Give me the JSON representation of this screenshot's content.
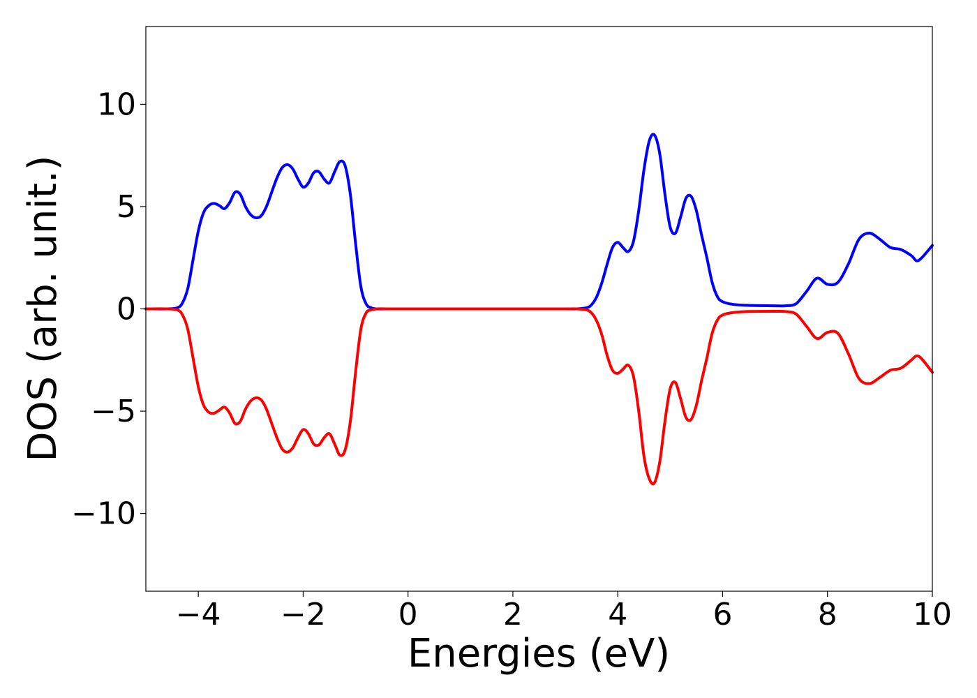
{
  "chart_data": {
    "type": "line",
    "title": "",
    "xlabel": "Energies (eV)",
    "ylabel": "DOS (arb. unit.)",
    "xlim": [
      -5,
      10
    ],
    "ylim": [
      -13.8,
      13.8
    ],
    "grid": false,
    "legend": "none",
    "x_ticks": [
      -4,
      -2,
      0,
      2,
      4,
      6,
      8,
      10
    ],
    "x_tick_labels": [
      "−4",
      "−2",
      "0",
      "2",
      "4",
      "6",
      "8",
      "10"
    ],
    "y_ticks": [
      -10,
      -5,
      0,
      5,
      10
    ],
    "y_tick_labels": [
      "−10",
      "−5",
      "0",
      "5",
      "10"
    ],
    "series": [
      {
        "color": "#0000ff",
        "x": [
          -5.0,
          -4.6,
          -4.4,
          -4.3,
          -4.2,
          -4.1,
          -4.0,
          -3.9,
          -3.8,
          -3.7,
          -3.6,
          -3.5,
          -3.4,
          -3.3,
          -3.2,
          -3.1,
          -3.0,
          -2.9,
          -2.8,
          -2.7,
          -2.6,
          -2.5,
          -2.4,
          -2.3,
          -2.2,
          -2.1,
          -2.0,
          -1.9,
          -1.8,
          -1.7,
          -1.6,
          -1.5,
          -1.4,
          -1.3,
          -1.2,
          -1.1,
          -1.0,
          -0.9,
          -0.8,
          -0.7,
          -0.6,
          -0.4,
          0.0,
          1.0,
          2.0,
          3.0,
          3.2,
          3.4,
          3.5,
          3.6,
          3.7,
          3.8,
          3.9,
          4.0,
          4.1,
          4.2,
          4.3,
          4.4,
          4.5,
          4.6,
          4.7,
          4.8,
          4.9,
          5.0,
          5.1,
          5.2,
          5.3,
          5.4,
          5.5,
          5.6,
          5.7,
          5.8,
          5.9,
          6.0,
          6.2,
          6.5,
          7.0,
          7.2,
          7.4,
          7.6,
          7.8,
          8.0,
          8.2,
          8.4,
          8.6,
          8.8,
          9.0,
          9.2,
          9.4,
          9.6,
          9.7,
          9.8,
          10.0
        ],
        "y": [
          0.0,
          0.0,
          0.05,
          0.3,
          1.0,
          2.4,
          3.8,
          4.7,
          5.05,
          5.15,
          5.05,
          4.9,
          5.2,
          5.7,
          5.6,
          5.0,
          4.6,
          4.45,
          4.55,
          5.0,
          5.7,
          6.4,
          6.9,
          7.05,
          6.85,
          6.35,
          5.95,
          6.15,
          6.65,
          6.7,
          6.35,
          6.15,
          6.7,
          7.2,
          7.0,
          5.6,
          3.2,
          1.1,
          0.25,
          0.05,
          0.0,
          0.0,
          0.0,
          0.0,
          0.0,
          0.0,
          0.0,
          0.05,
          0.2,
          0.6,
          1.3,
          2.2,
          3.0,
          3.25,
          3.0,
          2.8,
          3.3,
          4.8,
          6.8,
          8.2,
          8.5,
          7.6,
          5.6,
          4.0,
          3.7,
          4.5,
          5.4,
          5.5,
          4.8,
          3.6,
          2.5,
          1.3,
          0.6,
          0.35,
          0.22,
          0.17,
          0.15,
          0.15,
          0.25,
          0.85,
          1.5,
          1.2,
          1.3,
          2.2,
          3.4,
          3.7,
          3.4,
          3.0,
          2.9,
          2.6,
          2.35,
          2.5,
          3.1
        ]
      },
      {
        "color": "#ff0000",
        "x": [
          -5.0,
          -4.6,
          -4.4,
          -4.3,
          -4.2,
          -4.1,
          -4.0,
          -3.9,
          -3.8,
          -3.7,
          -3.6,
          -3.5,
          -3.4,
          -3.3,
          -3.2,
          -3.1,
          -3.0,
          -2.9,
          -2.8,
          -2.7,
          -2.6,
          -2.5,
          -2.4,
          -2.3,
          -2.2,
          -2.1,
          -2.0,
          -1.9,
          -1.8,
          -1.7,
          -1.6,
          -1.5,
          -1.4,
          -1.3,
          -1.2,
          -1.1,
          -1.0,
          -0.9,
          -0.8,
          -0.7,
          -0.6,
          -0.4,
          0.0,
          1.0,
          2.0,
          3.0,
          3.2,
          3.4,
          3.5,
          3.6,
          3.7,
          3.8,
          3.9,
          4.0,
          4.1,
          4.2,
          4.3,
          4.4,
          4.5,
          4.6,
          4.7,
          4.8,
          4.9,
          5.0,
          5.1,
          5.2,
          5.3,
          5.4,
          5.5,
          5.6,
          5.7,
          5.8,
          5.9,
          6.0,
          6.2,
          6.5,
          7.0,
          7.2,
          7.4,
          7.6,
          7.8,
          8.0,
          8.2,
          8.4,
          8.6,
          8.8,
          9.0,
          9.2,
          9.4,
          9.6,
          9.7,
          9.8,
          10.0
        ],
        "y": [
          0.0,
          0.0,
          -0.05,
          -0.3,
          -1.0,
          -2.4,
          -3.8,
          -4.7,
          -5.05,
          -5.1,
          -4.95,
          -4.8,
          -5.1,
          -5.6,
          -5.5,
          -4.9,
          -4.5,
          -4.35,
          -4.45,
          -4.9,
          -5.6,
          -6.3,
          -6.85,
          -7.0,
          -6.8,
          -6.3,
          -5.9,
          -6.1,
          -6.6,
          -6.65,
          -6.3,
          -6.1,
          -6.6,
          -7.15,
          -6.9,
          -5.5,
          -3.1,
          -1.0,
          -0.2,
          -0.05,
          0.0,
          0.0,
          0.0,
          0.0,
          0.0,
          0.0,
          0.0,
          -0.05,
          -0.2,
          -0.6,
          -1.3,
          -2.3,
          -3.0,
          -3.15,
          -2.95,
          -2.75,
          -3.3,
          -5.0,
          -7.2,
          -8.3,
          -8.5,
          -7.5,
          -5.5,
          -3.9,
          -3.6,
          -4.4,
          -5.3,
          -5.4,
          -4.7,
          -3.5,
          -2.4,
          -1.2,
          -0.55,
          -0.3,
          -0.18,
          -0.13,
          -0.12,
          -0.13,
          -0.25,
          -0.85,
          -1.45,
          -1.15,
          -1.2,
          -2.2,
          -3.4,
          -3.65,
          -3.35,
          -3.0,
          -2.9,
          -2.5,
          -2.3,
          -2.45,
          -3.1
        ]
      }
    ]
  }
}
